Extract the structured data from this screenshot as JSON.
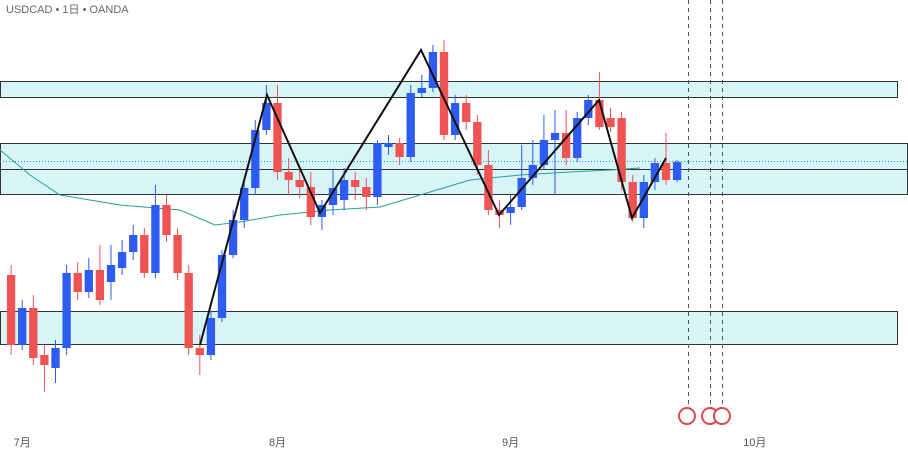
{
  "chart_data": {
    "type": "candlestick",
    "title": "USDCAD • 1日 • OANDA",
    "ylim": [
      1.294,
      1.38
    ],
    "xlim": [
      -1,
      80.8
    ],
    "xticks": [
      {
        "value": 1,
        "label": "7月"
      },
      {
        "value": 24,
        "label": "8月"
      },
      {
        "value": 45,
        "label": "9月"
      },
      {
        "value": 67,
        "label": "10月"
      }
    ],
    "up_color": "#2f5cf0",
    "down_color": "#ef5353",
    "ohlc": [
      [
        1.325,
        1.327,
        1.309,
        1.311
      ],
      [
        1.311,
        1.32,
        1.31,
        1.3184
      ],
      [
        1.3184,
        1.321,
        1.307,
        1.3084
      ],
      [
        1.309,
        1.311,
        1.3016,
        1.307
      ],
      [
        1.3064,
        1.312,
        1.3034,
        1.3104
      ],
      [
        1.3104,
        1.327,
        1.309,
        1.3254
      ],
      [
        1.3254,
        1.3276,
        1.32,
        1.3216
      ],
      [
        1.3216,
        1.3284,
        1.3204,
        1.326
      ],
      [
        1.326,
        1.331,
        1.319,
        1.32
      ],
      [
        1.3236,
        1.331,
        1.32,
        1.327
      ],
      [
        1.3264,
        1.332,
        1.325,
        1.3296
      ],
      [
        1.3296,
        1.335,
        1.328,
        1.333
      ],
      [
        1.333,
        1.3344,
        1.3244,
        1.3254
      ],
      [
        1.3254,
        1.343,
        1.3244,
        1.339
      ],
      [
        1.339,
        1.341,
        1.3316,
        1.333
      ],
      [
        1.333,
        1.3344,
        1.324,
        1.3254
      ],
      [
        1.3254,
        1.327,
        1.309,
        1.3104
      ],
      [
        1.3104,
        1.313,
        1.305,
        1.309
      ],
      [
        1.309,
        1.3176,
        1.308,
        1.3164
      ],
      [
        1.3164,
        1.33,
        1.3156,
        1.329
      ],
      [
        1.329,
        1.338,
        1.3284,
        1.336
      ],
      [
        1.336,
        1.344,
        1.3344,
        1.3424
      ],
      [
        1.3424,
        1.356,
        1.341,
        1.354
      ],
      [
        1.354,
        1.363,
        1.353,
        1.3594
      ],
      [
        1.3594,
        1.363,
        1.344,
        1.3456
      ],
      [
        1.3456,
        1.3484,
        1.341,
        1.344
      ],
      [
        1.344,
        1.3464,
        1.3404,
        1.3426
      ],
      [
        1.3426,
        1.3456,
        1.335,
        1.3366
      ],
      [
        1.3366,
        1.34,
        1.334,
        1.339
      ],
      [
        1.339,
        1.346,
        1.337,
        1.3424
      ],
      [
        1.34,
        1.3464,
        1.338,
        1.344
      ],
      [
        1.344,
        1.3456,
        1.34,
        1.3426
      ],
      [
        1.3426,
        1.3444,
        1.338,
        1.3406
      ],
      [
        1.3406,
        1.352,
        1.339,
        1.3514
      ],
      [
        1.3506,
        1.353,
        1.349,
        1.3514
      ],
      [
        1.3514,
        1.3524,
        1.347,
        1.3486
      ],
      [
        1.3486,
        1.363,
        1.3476,
        1.3614
      ],
      [
        1.3614,
        1.365,
        1.3606,
        1.3624
      ],
      [
        1.3624,
        1.371,
        1.3616,
        1.3696
      ],
      [
        1.3696,
        1.372,
        1.352,
        1.353
      ],
      [
        1.353,
        1.361,
        1.352,
        1.3594
      ],
      [
        1.3594,
        1.361,
        1.354,
        1.3556
      ],
      [
        1.3556,
        1.357,
        1.345,
        1.347
      ],
      [
        1.347,
        1.35,
        1.337,
        1.338
      ],
      [
        1.338,
        1.34,
        1.3344,
        1.337
      ],
      [
        1.3374,
        1.341,
        1.335,
        1.3386
      ],
      [
        1.3386,
        1.351,
        1.338,
        1.3444
      ],
      [
        1.3444,
        1.352,
        1.343,
        1.347
      ],
      [
        1.347,
        1.357,
        1.346,
        1.352
      ],
      [
        1.352,
        1.358,
        1.341,
        1.3534
      ],
      [
        1.3534,
        1.358,
        1.347,
        1.3484
      ],
      [
        1.3484,
        1.3576,
        1.3476,
        1.3564
      ],
      [
        1.3564,
        1.361,
        1.355,
        1.36
      ],
      [
        1.36,
        1.3656,
        1.354,
        1.3546
      ],
      [
        1.3564,
        1.3584,
        1.3536,
        1.3546
      ],
      [
        1.3564,
        1.3576,
        1.342,
        1.3436
      ],
      [
        1.3436,
        1.345,
        1.3356,
        1.3364
      ],
      [
        1.3364,
        1.345,
        1.3344,
        1.3436
      ],
      [
        1.3436,
        1.3484,
        1.342,
        1.3474
      ],
      [
        1.3474,
        1.3534,
        1.343,
        1.344
      ],
      [
        1.344,
        1.348,
        1.3436,
        1.3476
      ]
    ]
  }
}
